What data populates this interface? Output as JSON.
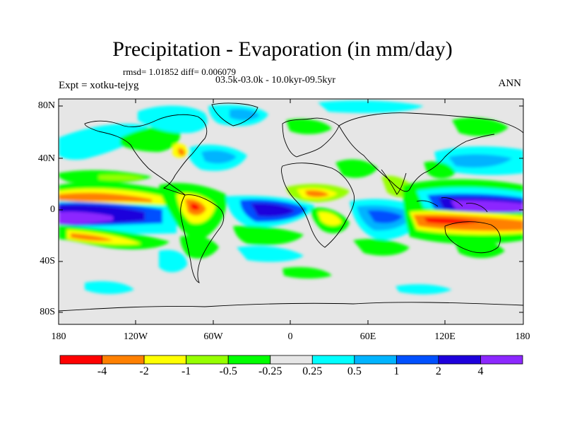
{
  "title": "Precipitation - Evaporation (in mm/day)",
  "stats": "rmsd= 1.01852  diff= 0.006079",
  "subtitle": "03.5k-03.0k - 10.0kyr-09.5kyr",
  "experiment": "Expt = xotku-tejyg",
  "season": "ANN",
  "axes": {
    "y_ticks": [
      "80N",
      "40N",
      "0",
      "40S",
      "80S"
    ],
    "x_ticks": [
      "180",
      "120W",
      "60W",
      "0",
      "60E",
      "120E",
      "180"
    ]
  },
  "colorbar": {
    "colors": [
      "#ff0000",
      "#ff8000",
      "#ffff00",
      "#96ff00",
      "#00ff00",
      "#e6e6e6",
      "#00ffff",
      "#00b4ff",
      "#0050ff",
      "#1e00dc",
      "#8c28ff"
    ],
    "labels": [
      "-4",
      "-2",
      "-1",
      "-0.5",
      "-0.25",
      "0.25",
      "0.5",
      "1",
      "2",
      "4"
    ]
  },
  "colors": {
    "background_field": "#e6e6e6"
  }
}
